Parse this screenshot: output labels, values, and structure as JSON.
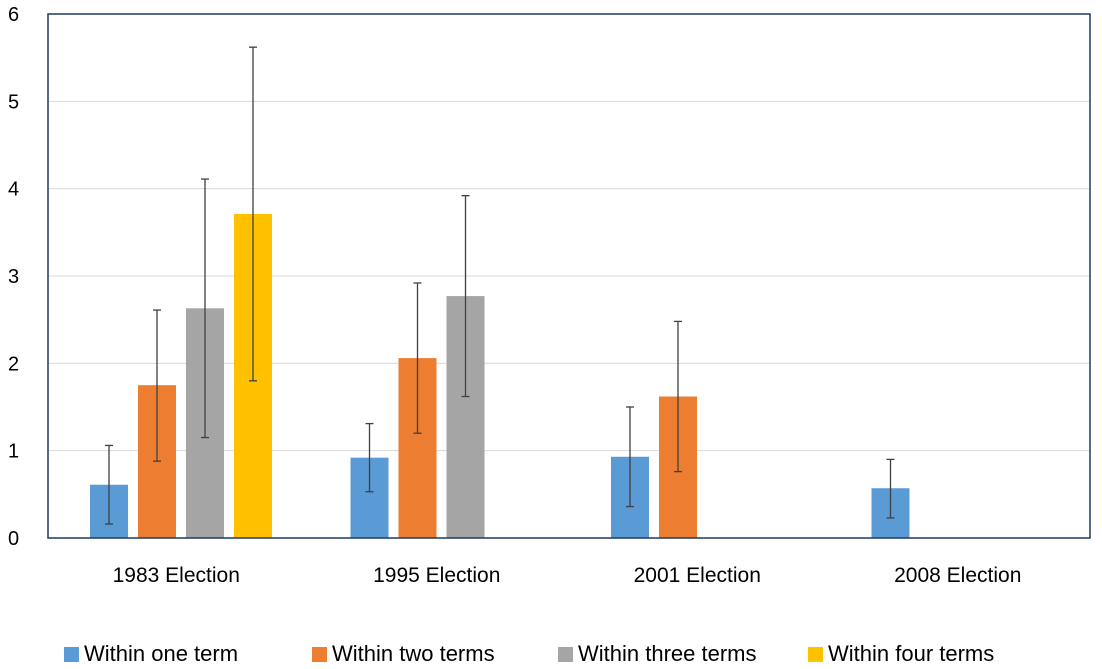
{
  "chart_data": {
    "type": "bar",
    "title": "",
    "xlabel": "",
    "ylabel": "",
    "ylim": [
      0,
      6
    ],
    "yticks": [
      0,
      1,
      2,
      3,
      4,
      5,
      6
    ],
    "grid": true,
    "legend_position": "bottom",
    "error_bars": true,
    "categories": [
      "1983 Election",
      "1995 Election",
      "2001 Election",
      "2008 Election"
    ],
    "series": [
      {
        "name": "Within one term",
        "color": "#5B9BD5",
        "values": [
          0.61,
          0.92,
          0.93,
          0.57
        ],
        "err_low": [
          0.16,
          0.53,
          0.36,
          0.23
        ],
        "err_high": [
          1.06,
          1.31,
          1.5,
          0.9
        ]
      },
      {
        "name": "Within two terms",
        "color": "#ED7D31",
        "values": [
          1.75,
          2.06,
          1.62,
          null
        ],
        "err_low": [
          0.88,
          1.2,
          0.76,
          null
        ],
        "err_high": [
          2.61,
          2.92,
          2.48,
          null
        ]
      },
      {
        "name": "Within three terms",
        "color": "#A5A5A5",
        "values": [
          2.63,
          2.77,
          null,
          null
        ],
        "err_low": [
          1.15,
          1.62,
          null,
          null
        ],
        "err_high": [
          4.11,
          3.92,
          null,
          null
        ]
      },
      {
        "name": "Within four terms",
        "color": "#FFC000",
        "values": [
          3.71,
          null,
          null,
          null
        ],
        "err_low": [
          1.8,
          null,
          null,
          null
        ],
        "err_high": [
          5.62,
          null,
          null,
          null
        ]
      }
    ]
  }
}
